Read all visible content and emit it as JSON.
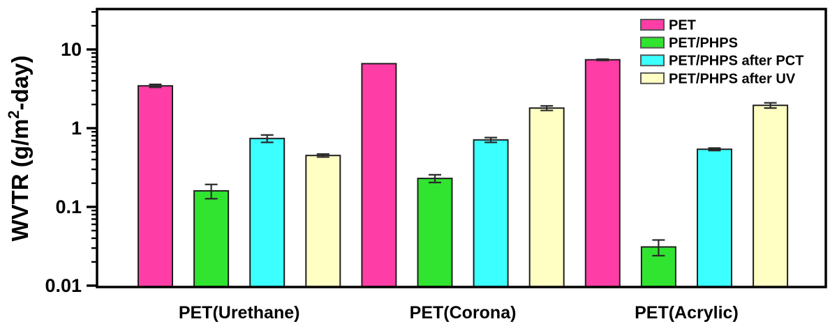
{
  "chart_data": {
    "type": "bar",
    "title": "",
    "ylabel": "WVTR (g/m²-day)",
    "ylabel_parts": {
      "prefix": "WVTR (g/m",
      "sup": "2",
      "suffix": "-day)"
    },
    "yscale": "log",
    "ylim": [
      0.01,
      32.6
    ],
    "yticks": [
      10,
      1,
      0.1,
      0.01
    ],
    "ytick_labels": [
      "10",
      "1",
      "0.1",
      "0.01"
    ],
    "grid": false,
    "legend_position": "top-right-inside",
    "categories": [
      "PET(Urethane)",
      "PET(Corona)",
      "PET(Acrylic)"
    ],
    "series": [
      {
        "name": "PET",
        "color": "#FF3DA6",
        "values": [
          3.45,
          6.6,
          7.4
        ],
        "errors": [
          0.15,
          0,
          0.15
        ]
      },
      {
        "name": "PET/PHPS",
        "color": "#30E430",
        "values": [
          0.16,
          0.23,
          0.031
        ],
        "errors": [
          0.033,
          0.026,
          0.007
        ]
      },
      {
        "name": "PET/PHPS after PCT",
        "color": "#3CFFFF",
        "values": [
          0.74,
          0.71,
          0.54
        ],
        "errors": [
          0.08,
          0.05,
          0.02
        ]
      },
      {
        "name": "PET/PHPS after UV",
        "color": "#FFFFC4",
        "values": [
          0.45,
          1.8,
          1.95
        ],
        "errors": [
          0.02,
          0.12,
          0.15
        ]
      }
    ],
    "colors": {
      "axis": "#000000",
      "bar_outline": "#1f1f1f",
      "error_bar": "#2b2b2b",
      "text": "#000000",
      "background": "#FFFFFF"
    }
  }
}
